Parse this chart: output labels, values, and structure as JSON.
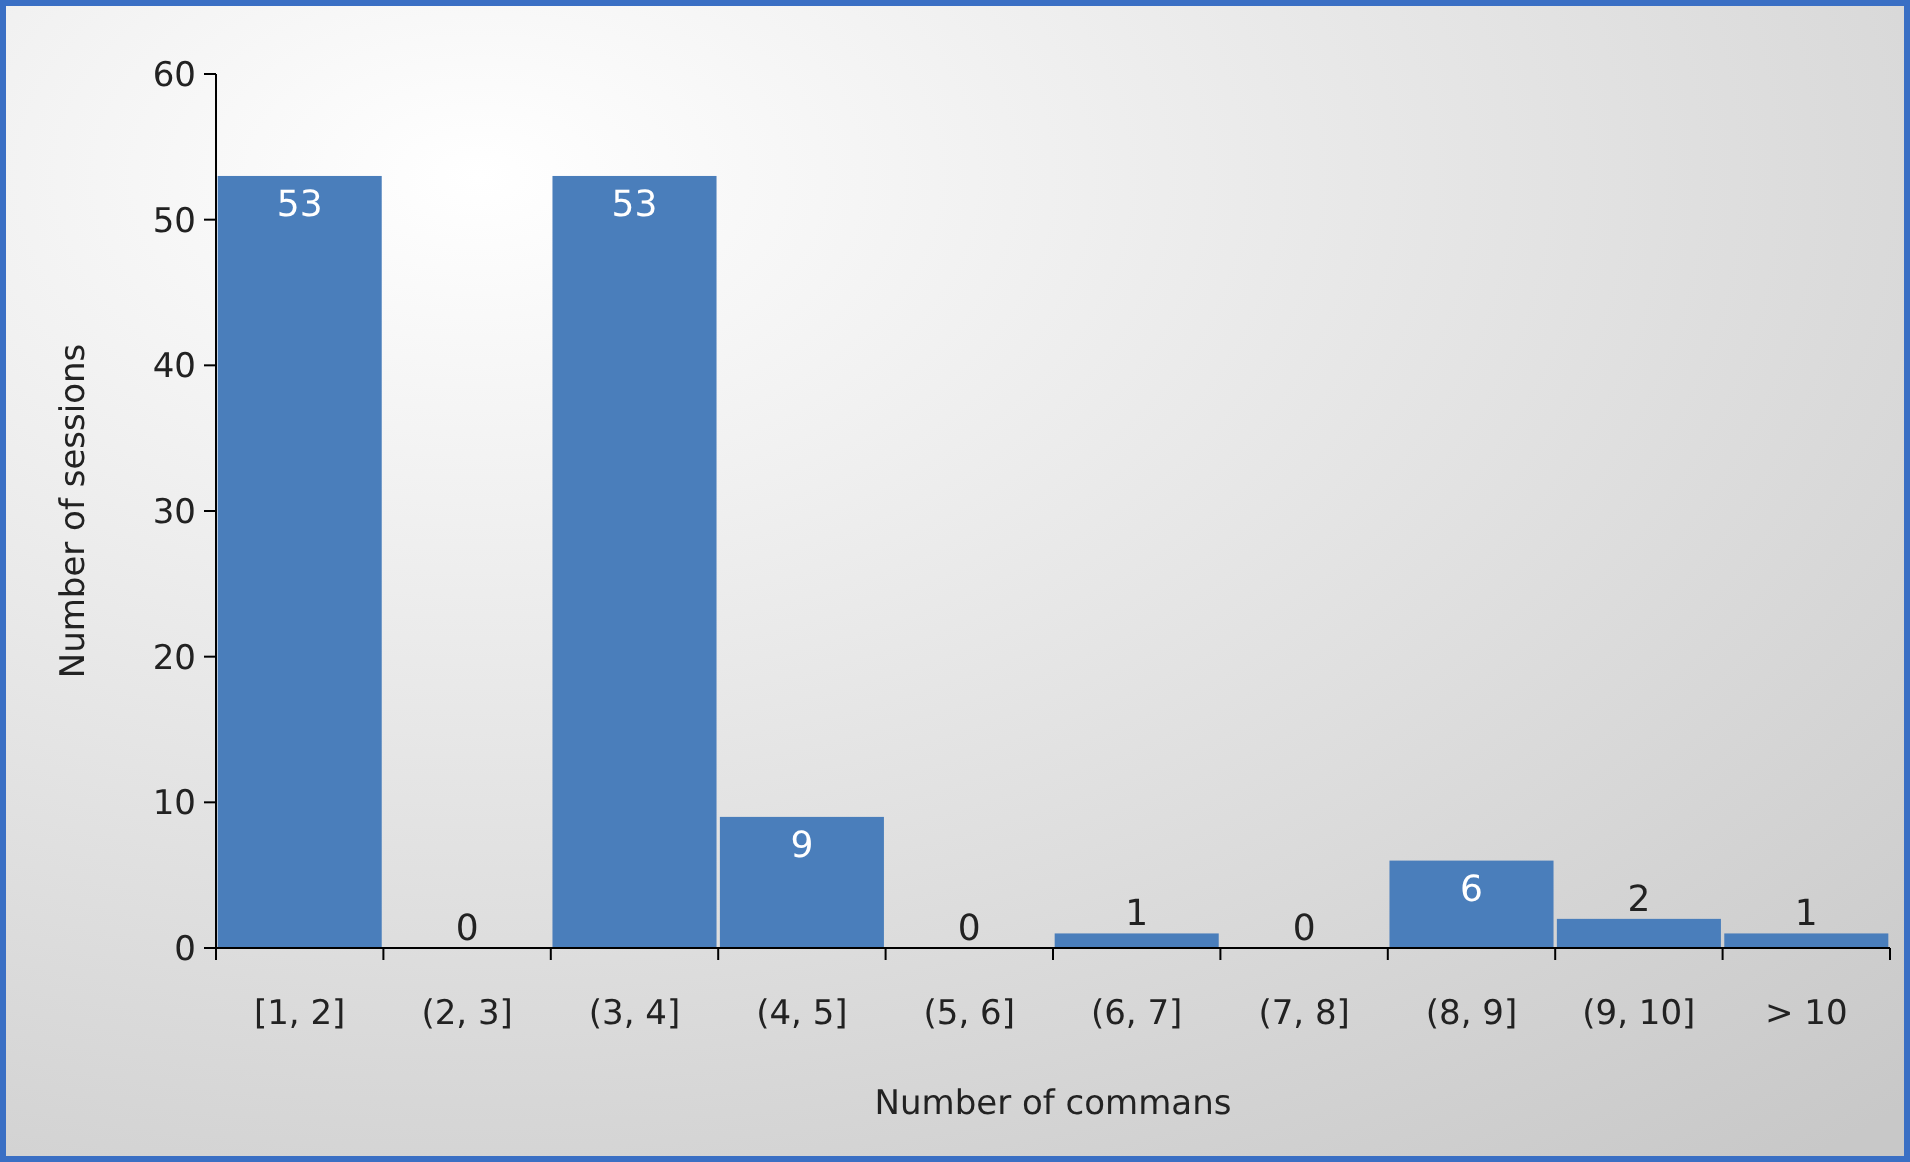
{
  "chart_data": {
    "type": "bar",
    "xlabel": "Number of commans",
    "ylabel": "Number of sessions",
    "categories": [
      "[1, 2]",
      "(2, 3]",
      "(3, 4]",
      "(4, 5]",
      "(5, 6]",
      "(6, 7]",
      "(7, 8]",
      "(8, 9]",
      "(9, 10]",
      "> 10"
    ],
    "values": [
      53,
      0,
      53,
      9,
      0,
      1,
      0,
      6,
      2,
      1
    ],
    "color": "#4a7ebb",
    "ylim": [
      0,
      60
    ],
    "yticks": [
      0,
      10,
      20,
      30,
      40,
      50,
      60
    ],
    "data_labels": true,
    "grid": false
  }
}
